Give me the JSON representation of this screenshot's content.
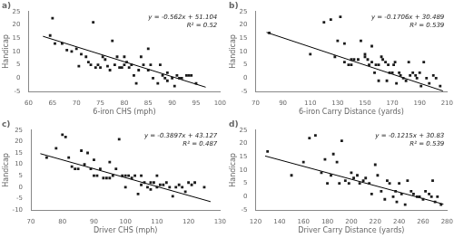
{
  "chart_data": [
    {
      "type": "scatter",
      "title": "a)",
      "annotations": [
        "y = -0.562x + 51.104",
        "R² = 0.52"
      ],
      "x_label": "6-iron CHS (mph)",
      "y_label": "Handicap",
      "xlim": [
        60,
        100
      ],
      "xticks": [
        60,
        65,
        70,
        75,
        80,
        85,
        90,
        95,
        100
      ],
      "ylim": [
        -5,
        25
      ],
      "yticks": [
        -5,
        0,
        5,
        10,
        15,
        20,
        25
      ],
      "grid": false,
      "series": [
        {
          "type": "scatter",
          "marker": "square",
          "color": "#1a1a1a",
          "x": [
            64.5,
            65,
            65.5,
            67,
            68,
            69,
            70,
            70.5,
            71,
            72,
            72.5,
            73,
            73.5,
            74,
            74.5,
            75,
            75.5,
            76,
            76.5,
            77,
            77.5,
            78,
            78.5,
            79,
            79.5,
            80,
            80,
            80.5,
            81,
            81.5,
            82,
            82.5,
            83,
            83.5,
            84,
            85,
            85,
            85.5,
            86,
            87,
            87.5,
            88,
            88.5,
            89,
            89,
            90,
            90.5,
            91,
            91.5,
            92,
            93,
            93.5,
            94,
            95
          ],
          "values": [
            16,
            22.5,
            13,
            13,
            10.5,
            10,
            11,
            4.5,
            9,
            8,
            6,
            5,
            21,
            4,
            5,
            4,
            8,
            7,
            4.5,
            3,
            14,
            5,
            8,
            4,
            4,
            8,
            5,
            6,
            4,
            5,
            1,
            -2,
            3,
            8,
            5,
            11,
            3,
            5,
            0,
            -2,
            5,
            1,
            0,
            2,
            -1,
            0,
            -3,
            1,
            0,
            0,
            1,
            1,
            1,
            -2
          ]
        },
        {
          "type": "line",
          "line_style": "solid",
          "color": "#000000",
          "x": [
            63,
            97
          ],
          "values": [
            15.698,
            -3.41
          ]
        }
      ]
    },
    {
      "type": "scatter",
      "title": "b)",
      "annotations": [
        "y = -0.1706x + 30.489",
        "R² = 0.539"
      ],
      "x_label": "6-iron Carry Distance (yards)",
      "y_label": "Handicap",
      "xlim": [
        70,
        210
      ],
      "xticks": [
        70,
        90,
        110,
        130,
        150,
        170,
        190,
        210
      ],
      "ylim": [
        -5,
        25
      ],
      "yticks": [
        -5,
        0,
        5,
        10,
        15,
        20,
        25
      ],
      "grid": false,
      "series": [
        {
          "type": "scatter",
          "marker": "square",
          "color": "#1a1a1a",
          "x": [
            80,
            110,
            120,
            125,
            128,
            130,
            132,
            135,
            135,
            138,
            140,
            140,
            142,
            145,
            147,
            150,
            150,
            152,
            153,
            155,
            155,
            157,
            158,
            160,
            160,
            162,
            163,
            165,
            166,
            167,
            168,
            170,
            171,
            172,
            173,
            175,
            176,
            178,
            180,
            182,
            183,
            185,
            187,
            188,
            190,
            191,
            193,
            195,
            197,
            200,
            202,
            205
          ],
          "values": [
            17,
            9,
            21,
            22,
            8,
            14,
            23,
            6,
            13,
            5,
            7,
            5,
            7,
            7,
            14,
            9,
            8,
            7,
            5,
            6,
            12,
            2,
            5,
            5,
            -1,
            8,
            7,
            6,
            -1,
            5,
            2,
            2,
            5,
            6,
            -2,
            2,
            1,
            0,
            -1,
            6,
            1,
            2,
            1,
            0,
            2,
            -3,
            6,
            0,
            -2,
            1,
            0,
            -3
          ]
        },
        {
          "type": "line",
          "line_style": "solid",
          "color": "#000000",
          "x": [
            78,
            207
          ],
          "values": [
            17.1822,
            -4.8252
          ]
        }
      ]
    },
    {
      "type": "scatter",
      "title": "c)",
      "annotations": [
        "y = -0.3897x + 43.127",
        "R² = 0.487"
      ],
      "x_label": "Driver CHS (mph)",
      "y_label": "Handicap",
      "xlim": [
        70,
        130
      ],
      "xticks": [
        70,
        80,
        90,
        100,
        110,
        120,
        130
      ],
      "ylim": [
        -10,
        25
      ],
      "yticks": [
        -10,
        -5,
        0,
        5,
        10,
        15,
        20,
        25
      ],
      "grid": false,
      "series": [
        {
          "type": "scatter",
          "marker": "square",
          "color": "#1a1a1a",
          "x": [
            75,
            78,
            80,
            81,
            82,
            83,
            84,
            85,
            86,
            87,
            88,
            89,
            90,
            90,
            91,
            92,
            93,
            94,
            95,
            95,
            96,
            97,
            98,
            99,
            100,
            100,
            101,
            102,
            103,
            104,
            105,
            105,
            106,
            107,
            108,
            108,
            109,
            110,
            110,
            111,
            112,
            113,
            114,
            115,
            116,
            117,
            118,
            119,
            120,
            121,
            122,
            125
          ],
          "values": [
            13,
            17,
            23,
            22,
            13,
            9,
            8,
            8,
            16,
            10,
            15,
            8,
            5,
            12,
            5,
            8,
            4,
            4,
            11,
            4,
            5,
            8,
            21,
            5,
            5,
            0,
            5,
            4,
            5,
            -3,
            5,
            1,
            2,
            0,
            -1,
            2,
            2,
            0,
            5,
            1,
            1,
            2,
            0,
            -4,
            0,
            1,
            0,
            -2,
            2,
            1,
            2,
            0
          ]
        },
        {
          "type": "line",
          "line_style": "solid",
          "color": "#000000",
          "x": [
            73,
            127
          ],
          "values": [
            14.6789,
            -6.3649
          ]
        }
      ]
    },
    {
      "type": "scatter",
      "title": "d)",
      "annotations": [
        "y = -0.1215x + 30.83",
        "R² = 0.539"
      ],
      "x_label": "Driver Carry Distance (yards)",
      "y_label": "Handicap",
      "xlim": [
        120,
        280
      ],
      "xticks": [
        120,
        140,
        160,
        180,
        200,
        220,
        240,
        260,
        280
      ],
      "ylim": [
        -5,
        25
      ],
      "yticks": [
        -5,
        0,
        5,
        10,
        15,
        20,
        25
      ],
      "grid": false,
      "series": [
        {
          "type": "scatter",
          "marker": "square",
          "color": "#1a1a1a",
          "x": [
            130,
            150,
            160,
            165,
            170,
            175,
            178,
            180,
            183,
            185,
            188,
            190,
            192,
            195,
            198,
            200,
            202,
            205,
            207,
            210,
            212,
            215,
            217,
            220,
            222,
            225,
            228,
            230,
            232,
            235,
            237,
            238,
            240,
            242,
            245,
            247,
            250,
            252,
            255,
            257,
            260,
            262,
            265,
            267,
            268,
            270,
            272,
            275
          ],
          "values": [
            17,
            8,
            13,
            22,
            23,
            9,
            14,
            5,
            8,
            16,
            13,
            5,
            21,
            6,
            5,
            9,
            7,
            8,
            5,
            6,
            7,
            5,
            1,
            12,
            8,
            2,
            -1,
            6,
            5,
            0,
            2,
            -2,
            5,
            1,
            -3,
            6,
            2,
            1,
            0,
            0,
            -1,
            2,
            1,
            0,
            6,
            -2,
            0,
            -3
          ]
        },
        {
          "type": "line",
          "line_style": "solid",
          "color": "#000000",
          "x": [
            128,
            277
          ],
          "values": [
            15.278,
            -2.8255
          ]
        }
      ]
    }
  ]
}
